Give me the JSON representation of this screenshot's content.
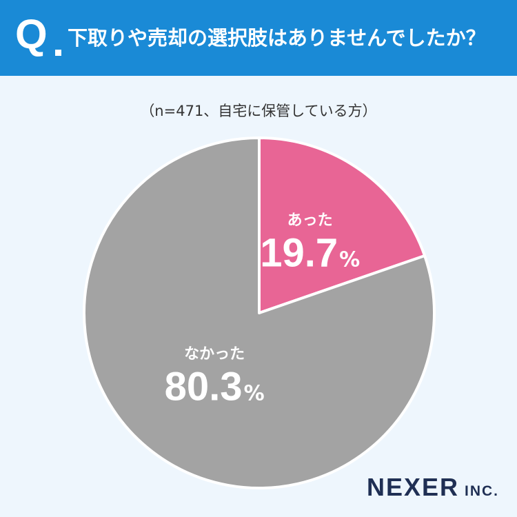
{
  "header": {
    "q_mark": "Q",
    "question": "下取りや売却の選択肢はありませんでしたか？"
  },
  "sample_note": "（n=471、自宅に保管している方）",
  "chart_data": {
    "type": "pie",
    "categories": [
      "あった",
      "なかった"
    ],
    "values": [
      19.7,
      80.3
    ],
    "unit": "%",
    "colors": [
      "#e86595",
      "#a3a3a3"
    ],
    "value_labels": [
      "19.7",
      "80.3"
    ]
  },
  "brand": {
    "main": "NEXER",
    "suffix": "INC."
  },
  "colors": {
    "header_bg": "#1a8ad6",
    "page_bg": "#eef6fd"
  }
}
